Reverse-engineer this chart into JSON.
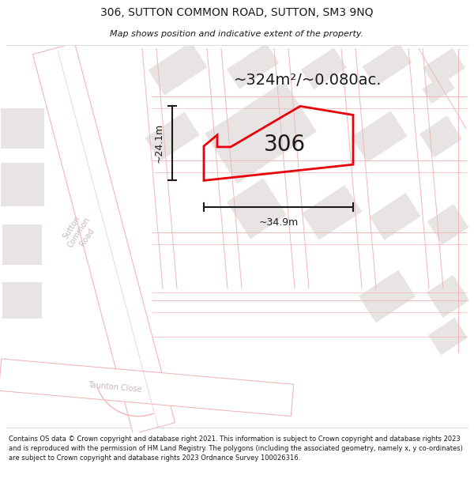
{
  "title_line1": "306, SUTTON COMMON ROAD, SUTTON, SM3 9NQ",
  "title_line2": "Map shows position and indicative extent of the property.",
  "area_text": "~324m²/~0.080ac.",
  "width_label": "~34.9m",
  "height_label": "~24.1m",
  "number_label": "306",
  "footer_text": "Contains OS data © Crown copyright and database right 2021. This information is subject to Crown copyright and database rights 2023 and is reproduced with the permission of HM Land Registry. The polygons (including the associated geometry, namely x, y co-ordinates) are subject to Crown copyright and database rights 2023 Ordnance Survey 100026316.",
  "bg_color": "#ffffff",
  "map_bg": "#f8f7f7",
  "road_line_color": "#f0b8b8",
  "road_fill": "#ffffff",
  "block_color": "#e8e4e4",
  "plot_color": "#e8000a",
  "text_color": "#1a1a1a",
  "dim_color": "#1a1a1a",
  "road_label_color": "#c8b8b8",
  "sep_line_color": "#dddddd"
}
